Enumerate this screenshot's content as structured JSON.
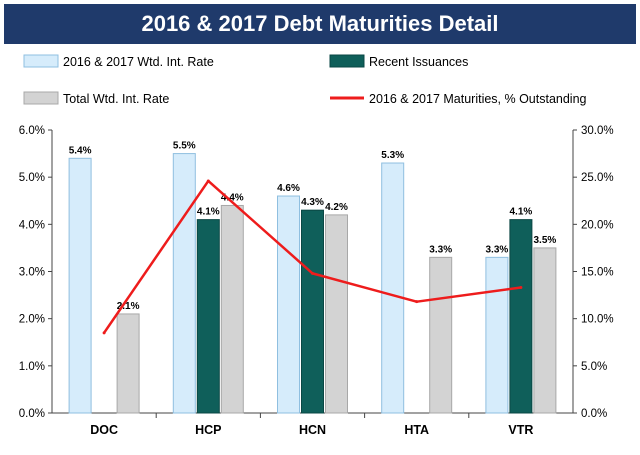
{
  "title": "2016 & 2017 Debt Maturities Detail",
  "colors": {
    "title_bg": "#1f3a6b",
    "wtd_rate": "#d6ecfb",
    "recent_issuances": "#0f5f5a",
    "total_wtd_rate": "#d3d3d3",
    "maturities_line": "#ee1c1c"
  },
  "chart_data": {
    "type": "bar",
    "categories": [
      "DOC",
      "HCP",
      "HCN",
      "HTA",
      "VTR"
    ],
    "series": [
      {
        "name": "2016 & 2017 Wtd. Int. Rate",
        "values": [
          5.4,
          5.5,
          4.6,
          5.3,
          3.3
        ],
        "labels": [
          "5.4%",
          "5.5%",
          "4.6%",
          "5.3%",
          "3.3%"
        ]
      },
      {
        "name": "Recent Issuances",
        "values": [
          null,
          4.1,
          4.3,
          null,
          4.1
        ],
        "labels": [
          "",
          "4.1%",
          "4.3%",
          "",
          "4.1%"
        ]
      },
      {
        "name": "Total Wtd. Int. Rate",
        "values": [
          2.1,
          4.4,
          4.2,
          3.3,
          3.5
        ],
        "labels": [
          "2.1%",
          "4.4%",
          "4.2%",
          "3.3%",
          "3.5%"
        ]
      },
      {
        "name": "2016 & 2017 Maturities, % Outstanding",
        "type": "line",
        "axis": "right",
        "values": [
          8.5,
          24.6,
          14.8,
          11.8,
          13.3
        ]
      }
    ],
    "ylim_left": [
      0,
      6
    ],
    "yticks_left": [
      "0.0%",
      "1.0%",
      "2.0%",
      "3.0%",
      "4.0%",
      "5.0%",
      "6.0%"
    ],
    "ylim_right": [
      0,
      30
    ],
    "yticks_right": [
      "0.0%",
      "5.0%",
      "10.0%",
      "15.0%",
      "20.0%",
      "25.0%",
      "30.0%"
    ],
    "legend_position": "top",
    "grid": false
  }
}
